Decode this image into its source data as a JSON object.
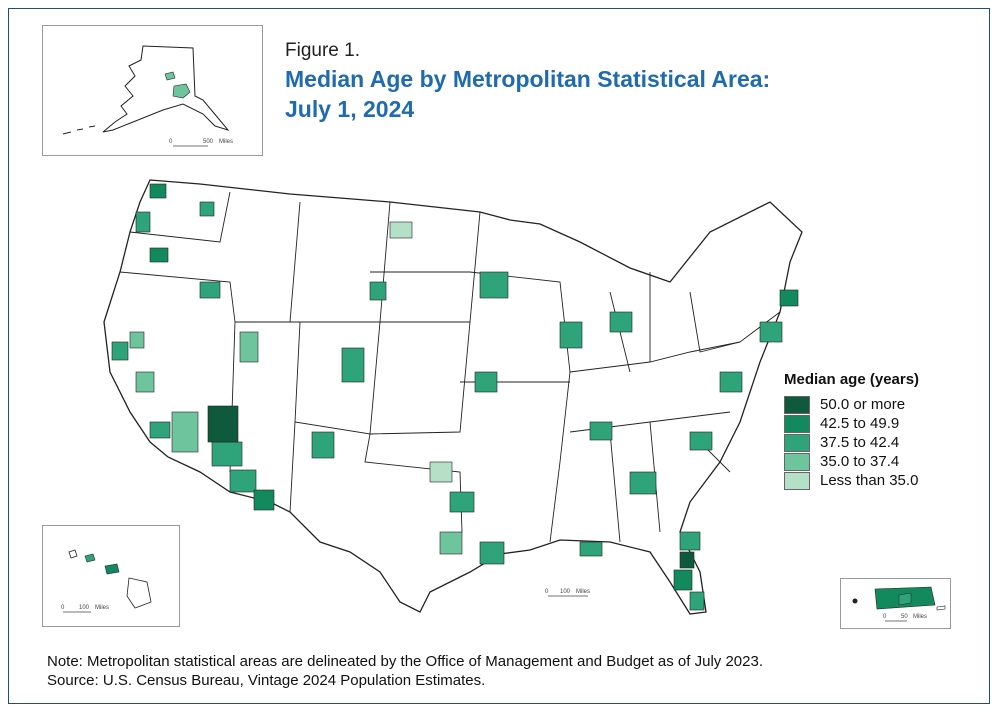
{
  "figure": {
    "label": "Figure 1.",
    "title_line1": "Median Age by Metropolitan Statistical Area:",
    "title_line2": "July 1, 2024"
  },
  "legend": {
    "title": "Median age (years)",
    "classes": [
      {
        "label": "50.0 or more",
        "color": "#0f5a3c"
      },
      {
        "label": "42.5 to 49.9",
        "color": "#138a5e"
      },
      {
        "label": "37.5 to 42.4",
        "color": "#2fa47a"
      },
      {
        "label": "35.0 to 37.4",
        "color": "#6ec59d"
      },
      {
        "label": "Less than 35.0",
        "color": "#b4e0c8"
      }
    ]
  },
  "scales": {
    "alaska": {
      "zero": "0",
      "distance": "500",
      "unit": "Miles"
    },
    "hawaii": {
      "zero": "0",
      "distance": "100",
      "unit": "Miles"
    },
    "conus": {
      "zero": "0",
      "distance": "100",
      "unit": "Miles"
    },
    "puerto_rico": {
      "zero": "0",
      "distance": "50",
      "unit": "Miles"
    }
  },
  "notes": {
    "note": "Note: Metropolitan statistical areas are delineated by the Office of Management and Budget as of July 2023.",
    "source": "Source: U.S. Census Bureau, Vintage 2024 Population Estimates."
  },
  "colors": {
    "frame": "#1f4e79",
    "title": "#1f6bb0",
    "state_border": "#222222",
    "land": "#ffffff"
  }
}
